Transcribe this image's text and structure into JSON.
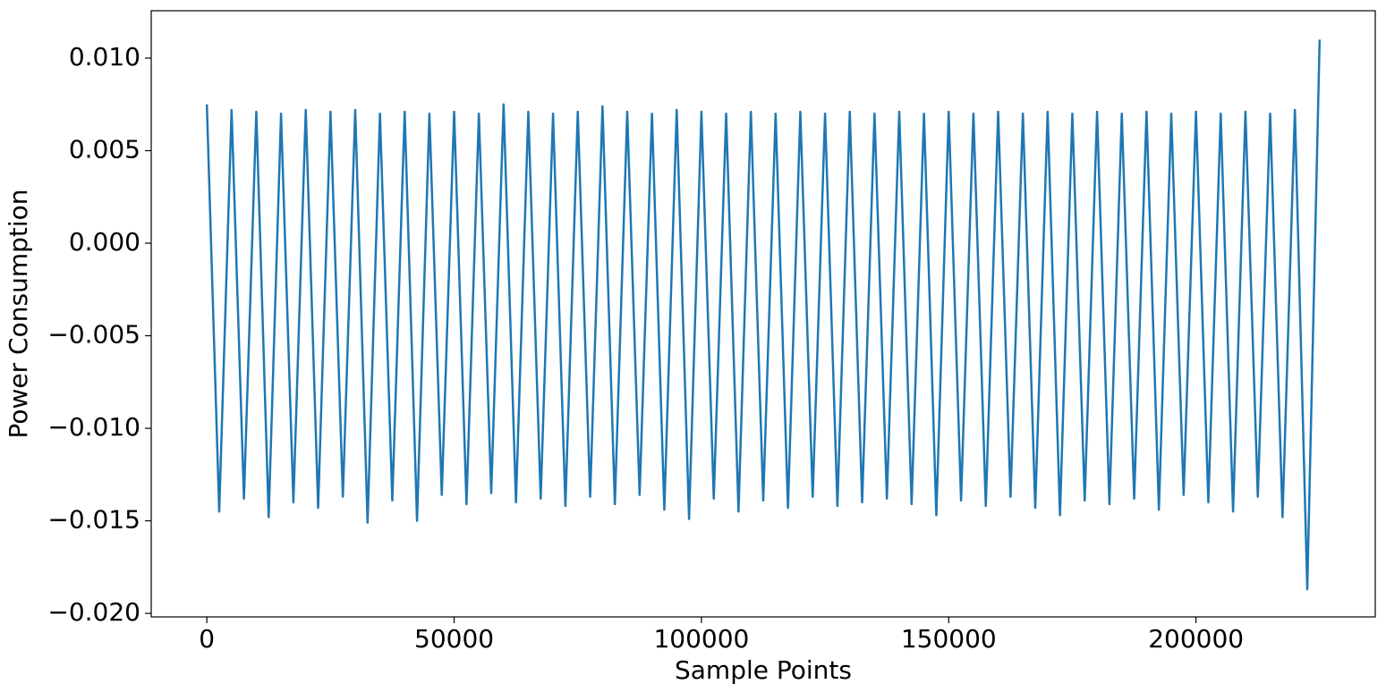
{
  "chart_data": {
    "type": "line",
    "xlabel": "Sample Points",
    "ylabel": "Power Consumption",
    "x": [
      0,
      2500,
      5000,
      7500,
      10000,
      12500,
      15000,
      17500,
      20000,
      22500,
      25000,
      27500,
      30000,
      32500,
      35000,
      37500,
      40000,
      42500,
      45000,
      47500,
      50000,
      52500,
      55000,
      57500,
      60000,
      62500,
      65000,
      67500,
      70000,
      72500,
      75000,
      77500,
      80000,
      82500,
      85000,
      87500,
      90000,
      92500,
      95000,
      97500,
      100000,
      102500,
      105000,
      107500,
      110000,
      112500,
      115000,
      117500,
      120000,
      122500,
      125000,
      127500,
      130000,
      132500,
      135000,
      137500,
      140000,
      142500,
      145000,
      147500,
      150000,
      152500,
      155000,
      157500,
      160000,
      162500,
      165000,
      167500,
      170000,
      172500,
      175000,
      177500,
      180000,
      182500,
      185000,
      187500,
      190000,
      192500,
      195000,
      197500,
      200000,
      202500,
      205000,
      207500,
      210000,
      212500,
      215000,
      217500,
      220000,
      222500,
      225000
    ],
    "series": [
      {
        "name": "Power Consumption",
        "color": "#1f77b4",
        "values": [
          0.0075,
          -0.0145,
          0.0072,
          -0.0138,
          0.0071,
          -0.0148,
          0.007,
          -0.014,
          0.0072,
          -0.0143,
          0.0071,
          -0.0137,
          0.0072,
          -0.0151,
          0.007,
          -0.0139,
          0.0071,
          -0.015,
          0.007,
          -0.0136,
          0.0071,
          -0.0141,
          0.007,
          -0.0135,
          0.0075,
          -0.014,
          0.0071,
          -0.0138,
          0.007,
          -0.0142,
          0.0071,
          -0.0137,
          0.0074,
          -0.0141,
          0.0071,
          -0.0136,
          0.007,
          -0.0144,
          0.0072,
          -0.0149,
          0.0071,
          -0.0138,
          0.007,
          -0.0145,
          0.0071,
          -0.0139,
          0.007,
          -0.0143,
          0.0071,
          -0.0137,
          0.007,
          -0.0142,
          0.0071,
          -0.014,
          0.007,
          -0.0138,
          0.0071,
          -0.0141,
          0.007,
          -0.0147,
          0.0071,
          -0.0139,
          0.007,
          -0.0142,
          0.0071,
          -0.0137,
          0.007,
          -0.0143,
          0.0071,
          -0.0147,
          0.007,
          -0.0139,
          0.0071,
          -0.0141,
          0.007,
          -0.0138,
          0.0071,
          -0.0144,
          0.007,
          -0.0136,
          0.0071,
          -0.014,
          0.007,
          -0.0145,
          0.0071,
          -0.0137,
          0.007,
          -0.0148,
          0.0072,
          -0.0187,
          0.011
        ]
      }
    ],
    "xlim": [
      -11250,
      236250
    ],
    "ylim": [
      -0.02019,
      0.01256
    ],
    "xticks": [
      0,
      50000,
      100000,
      150000,
      200000
    ],
    "yticks": [
      {
        "value": -0.02,
        "label": "−0.020"
      },
      {
        "value": -0.015,
        "label": "−0.015"
      },
      {
        "value": -0.01,
        "label": "−0.010"
      },
      {
        "value": -0.005,
        "label": "−0.005"
      },
      {
        "value": 0,
        "label": "0.000"
      },
      {
        "value": 0.005,
        "label": "0.005"
      },
      {
        "value": 0.01,
        "label": "0.010"
      }
    ],
    "grid": false
  }
}
